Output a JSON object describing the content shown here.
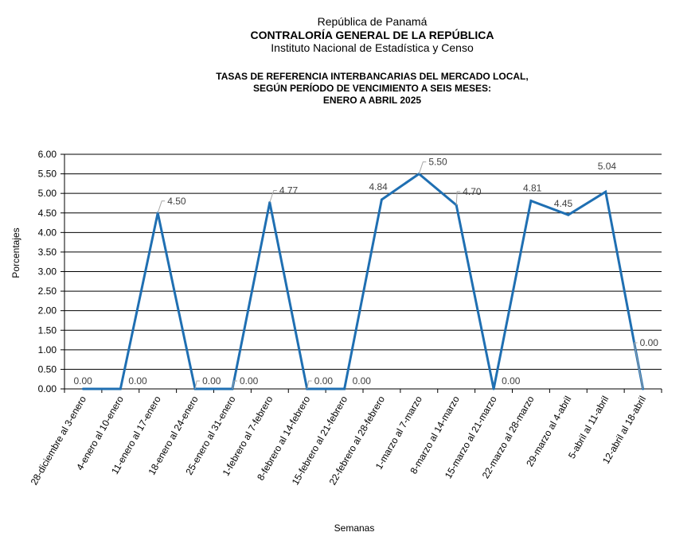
{
  "header": {
    "line1": "República de Panamá",
    "line2": "CONTRALORÍA GENERAL DE LA REPÚBLICA",
    "line3": "Instituto Nacional de Estadística y Censo"
  },
  "chart_data": {
    "type": "line",
    "title": [
      "TASAS DE REFERENCIA INTERBANCARIAS DEL MERCADO LOCAL,",
      "SEGÚN PERÍODO DE VENCIMIENTO A SEIS MESES:",
      "ENERO A ABRIL 2025"
    ],
    "xlabel": "Semanas",
    "ylabel": "Porcentajes",
    "ylim": [
      0,
      6
    ],
    "yticks": [
      "0.00",
      "0.50",
      "1.00",
      "1.50",
      "2.00",
      "2.50",
      "3.00",
      "3.50",
      "4.00",
      "4.50",
      "5.00",
      "5.50",
      "6.00"
    ],
    "grid": true,
    "line_color": "#1f6fb2",
    "categories": [
      "28-diciembre al 3-enero",
      "4-enero al 10-enero",
      "11-enero al 17-enero",
      "18-enero al 24-enero",
      "25-enero al 31-enero",
      "1-febrero al 7-febrero",
      "8-febrero al 14-febrero",
      "15-febrero al 21-febrero",
      "22-febrero al 28-febrero",
      "1-marzo al 7-marzo",
      "8-marzo al 14-marzo",
      "15-marzo al 21-marzo",
      "22-marzo al 28-marzo",
      "29-marzo al 4-abril",
      "5-abril al 11-abril",
      "12-abril al 18-abril"
    ],
    "values": [
      0.0,
      0.0,
      4.5,
      0.0,
      0.0,
      4.77,
      0.0,
      0.0,
      4.84,
      5.5,
      4.7,
      0.0,
      4.81,
      4.45,
      5.04,
      0.0
    ],
    "labels": [
      "0.00",
      "0.00",
      "4.50",
      "0.00",
      "0.00",
      "4.77",
      "0.00",
      "0.00",
      "4.84",
      "5.50",
      "4.70",
      "0.00",
      "4.81",
      "4.45",
      "5.04",
      "0.00"
    ]
  }
}
